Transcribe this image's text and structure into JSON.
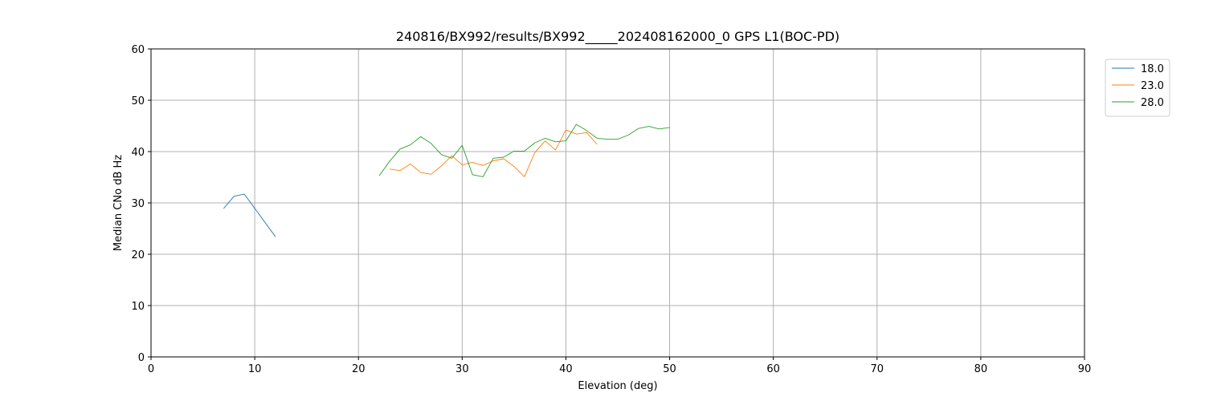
{
  "chart_data": {
    "type": "line",
    "title": "240816/BX992/results/BX992_____202408162000_0 GPS L1(BOC-PD)",
    "xlabel": "Elevation (deg)",
    "ylabel": "Median CNo dB Hz",
    "xlim": [
      0,
      90
    ],
    "ylim": [
      0,
      60
    ],
    "xticks": [
      0,
      10,
      20,
      30,
      40,
      50,
      60,
      70,
      80,
      90
    ],
    "yticks": [
      0,
      10,
      20,
      30,
      40,
      50,
      60
    ],
    "grid": true,
    "legend_position": "upper-right-outside",
    "series": [
      {
        "name": "18.0",
        "color": "#1f77b4",
        "points": [
          [
            7,
            28.9
          ],
          [
            8,
            31.3
          ],
          [
            9,
            31.7
          ],
          [
            12,
            23.4
          ]
        ]
      },
      {
        "name": "23.0",
        "color": "#ff7f0e",
        "points": [
          [
            23,
            36.6
          ],
          [
            24,
            36.3
          ],
          [
            25,
            37.6
          ],
          [
            26,
            35.9
          ],
          [
            27,
            35.6
          ],
          [
            28,
            37.2
          ],
          [
            29,
            39.2
          ],
          [
            30,
            37.4
          ],
          [
            31,
            37.9
          ],
          [
            32,
            37.3
          ],
          [
            33,
            38.2
          ],
          [
            34,
            38.6
          ],
          [
            35,
            37.1
          ],
          [
            36,
            35.1
          ],
          [
            37,
            39.8
          ],
          [
            38,
            42.1
          ],
          [
            39,
            40.3
          ],
          [
            40,
            44.2
          ],
          [
            41,
            43.4
          ],
          [
            42,
            43.7
          ],
          [
            43,
            41.4
          ]
        ]
      },
      {
        "name": "28.0",
        "color": "#2ca02c",
        "points": [
          [
            22,
            35.3
          ],
          [
            23,
            38.1
          ],
          [
            24,
            40.5
          ],
          [
            25,
            41.3
          ],
          [
            26,
            42.9
          ],
          [
            27,
            41.6
          ],
          [
            28,
            39.4
          ],
          [
            29,
            38.7
          ],
          [
            30,
            41.2
          ],
          [
            31,
            35.5
          ],
          [
            32,
            35.1
          ],
          [
            33,
            38.7
          ],
          [
            34,
            38.9
          ],
          [
            35,
            40.1
          ],
          [
            36,
            40.1
          ],
          [
            37,
            41.7
          ],
          [
            38,
            42.6
          ],
          [
            39,
            41.9
          ],
          [
            40,
            42.1
          ],
          [
            41,
            45.3
          ],
          [
            42,
            44.1
          ],
          [
            43,
            42.6
          ],
          [
            44,
            42.4
          ],
          [
            45,
            42.4
          ],
          [
            46,
            43.2
          ],
          [
            47,
            44.5
          ],
          [
            48,
            44.9
          ],
          [
            49,
            44.4
          ],
          [
            50,
            44.7
          ]
        ]
      }
    ]
  }
}
